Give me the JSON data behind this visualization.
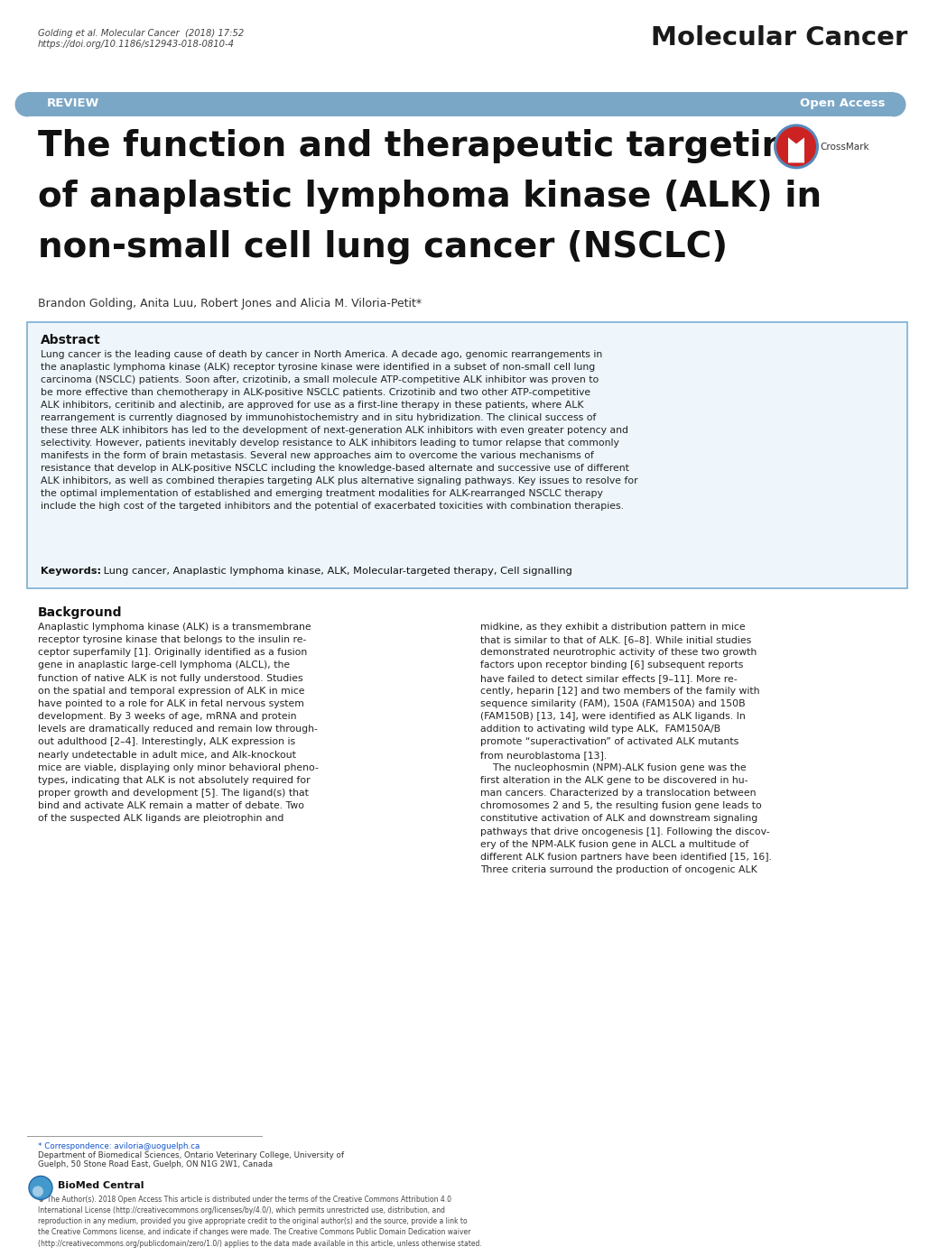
{
  "bg_color": "#ffffff",
  "header_line1": "Golding et al. Molecular Cancer  (2018) 17:52",
  "header_line2": "https://doi.org/10.1186/s12943-018-0810-4",
  "journal_name": "Molecular Cancer",
  "review_bar_color": "#7ba7c7",
  "review_text": "REVIEW",
  "open_access_text": "Open Access",
  "title_line1": "The function and therapeutic targeting",
  "title_line2": "of anaplastic lymphoma kinase (ALK) in",
  "title_line3": "non-small cell lung cancer (NSCLC)",
  "authors": "Brandon Golding, Anita Luu, Robert Jones and Alicia M. Viloria-Petit*",
  "abstract_title": "Abstract",
  "abstract_text": "Lung cancer is the leading cause of death by cancer in North America. A decade ago, genomic rearrangements in\nthe anaplastic lymphoma kinase (ALK) receptor tyrosine kinase were identified in a subset of non-small cell lung\ncarcinoma (NSCLC) patients. Soon after, crizotinib, a small molecule ATP-competitive ALK inhibitor was proven to\nbe more effective than chemotherapy in ALK-positive NSCLC patients. Crizotinib and two other ATP-competitive\nALK inhibitors, ceritinib and alectinib, are approved for use as a first-line therapy in these patients, where ALK\nrearrangement is currently diagnosed by immunohistochemistry and in situ hybridization. The clinical success of\nthese three ALK inhibitors has led to the development of next-generation ALK inhibitors with even greater potency and\nselectivity. However, patients inevitably develop resistance to ALK inhibitors leading to tumor relapse that commonly\nmanifests in the form of brain metastasis. Several new approaches aim to overcome the various mechanisms of\nresistance that develop in ALK-positive NSCLC including the knowledge-based alternate and successive use of different\nALK inhibitors, as well as combined therapies targeting ALK plus alternative signaling pathways. Key issues to resolve for\nthe optimal implementation of established and emerging treatment modalities for ALK-rearranged NSCLC therapy\ninclude the high cost of the targeted inhibitors and the potential of exacerbated toxicities with combination therapies.",
  "keywords_label": "Keywords:",
  "keywords_text": " Lung cancer, Anaplastic lymphoma kinase, ALK, Molecular-targeted therapy, Cell signalling",
  "bg_section_color": "#eef6fb",
  "border_color": "#7bafd4",
  "background_heading": "Background",
  "background_col1": "Anaplastic lymphoma kinase (ALK) is a transmembrane\nreceptor tyrosine kinase that belongs to the insulin re-\nceptor superfamily [1]. Originally identified as a fusion\ngene in anaplastic large-cell lymphoma (ALCL), the\nfunction of native ALK is not fully understood. Studies\non the spatial and temporal expression of ALK in mice\nhave pointed to a role for ALK in fetal nervous system\ndevelopment. By 3 weeks of age, mRNA and protein\nlevels are dramatically reduced and remain low through-\nout adulthood [2–4]. Interestingly, ALK expression is\nnearly undetectable in adult mice, and Alk-knockout\nmice are viable, displaying only minor behavioral pheno-\ntypes, indicating that ALK is not absolutely required for\nproper growth and development [5]. The ligand(s) that\nbind and activate ALK remain a matter of debate. Two\nof the suspected ALK ligands are pleiotrophin and",
  "background_col2": "midkine, as they exhibit a distribution pattern in mice\nthat is similar to that of ALK. [6–8]. While initial studies\ndemonstrated neurotrophic activity of these two growth\nfactors upon receptor binding [6] subsequent reports\nhave failed to detect similar effects [9–11]. More re-\ncently, heparin [12] and two members of the family with\nsequence similarity (FAM), 150A (FAM150A) and 150B\n(FAM150B) [13, 14], were identified as ALK ligands. In\naddition to activating wild type ALK,  FAM150A/B\npromote “superactivation” of activated ALK mutants\nfrom neuroblastoma [13].\n    The nucleophosmin (NPM)-ALK fusion gene was the\nfirst alteration in the ALK gene to be discovered in hu-\nman cancers. Characterized by a translocation between\nchromosomes 2 and 5, the resulting fusion gene leads to\nconstitutive activation of ALK and downstream signaling\npathways that drive oncogenesis [1]. Following the discov-\nery of the NPM-ALK fusion gene in ALCL a multitude of\ndifferent ALK fusion partners have been identified [15, 16].\nThree criteria surround the production of oncogenic ALK",
  "footer_correspondence": "* Correspondence: aviloria@uoguelph.ca",
  "footer_dept": "Department of Biomedical Sciences, Ontario Veterinary College, University of",
  "footer_addr": "Guelph, 50 Stone Road East, Guelph, ON N1G 2W1, Canada",
  "footer_logo_text": "BioMed Central",
  "footer_license": "© The Author(s). 2018 Open Access This article is distributed under the terms of the Creative Commons Attribution 4.0\nInternational License (http://creativecommons.org/licenses/by/4.0/), which permits unrestricted use, distribution, and\nreproduction in any medium, provided you give appropriate credit to the original author(s) and the source, provide a link to\nthe Creative Commons license, and indicate if changes were made. The Creative Commons Public Domain Dedication waiver\n(http://creativecommons.org/publicdomain/zero/1.0/) applies to the data made available in this article, unless otherwise stated."
}
